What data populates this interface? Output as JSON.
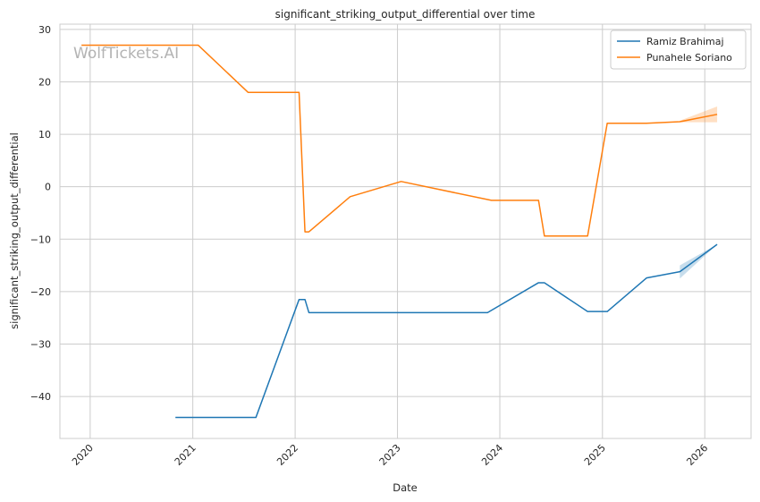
{
  "chart_data": {
    "type": "line",
    "title": "significant_striking_output_differential over time",
    "xlabel": "Date",
    "ylabel": "significant_striking_output_differential",
    "watermark": "WolfTickets.AI",
    "x_ticks": [
      "2020",
      "2021",
      "2022",
      "2023",
      "2024",
      "2025",
      "2026"
    ],
    "y_ticks": [
      "−40",
      "−30",
      "−20",
      "−10",
      "0",
      "10",
      "20",
      "30"
    ],
    "xlim": [
      "2019-09-15",
      "2026-06-15"
    ],
    "ylim": [
      -48,
      31
    ],
    "grid": true,
    "legend_position": "top-right",
    "colors": {
      "Ramiz Brahimaj": "#1f77b4",
      "Punahele Soriano": "#ff7f0e"
    },
    "series": [
      {
        "name": "Ramiz Brahimaj",
        "color": "#1f77b4",
        "points": [
          {
            "x": "2020-10-31",
            "y": -44
          },
          {
            "x": "2021-08-14",
            "y": -44
          },
          {
            "x": "2022-01-15",
            "y": -21.5
          },
          {
            "x": "2022-02-05",
            "y": -21.5
          },
          {
            "x": "2022-02-19",
            "y": -24
          },
          {
            "x": "2023-11-18",
            "y": -24
          },
          {
            "x": "2024-05-18",
            "y": -18.3
          },
          {
            "x": "2024-06-08",
            "y": -18.3
          },
          {
            "x": "2024-11-09",
            "y": -23.8
          },
          {
            "x": "2025-01-18",
            "y": -23.8
          },
          {
            "x": "2025-06-07",
            "y": -17.4
          },
          {
            "x": "2025-10-04",
            "y": -16.2
          },
          {
            "x": "2026-02-14",
            "y": -11
          }
        ],
        "band": {
          "from": "2025-10-04",
          "to": "2026-02-14",
          "lower": [
            -17.5,
            -11
          ],
          "upper": [
            -15,
            -11
          ]
        }
      },
      {
        "name": "Punahele Soriano",
        "color": "#ff7f0e",
        "points": [
          {
            "x": "2019-12-01",
            "y": 27
          },
          {
            "x": "2021-01-20",
            "y": 27
          },
          {
            "x": "2021-07-17",
            "y": 18
          },
          {
            "x": "2022-01-15",
            "y": 18
          },
          {
            "x": "2022-02-05",
            "y": -8.6
          },
          {
            "x": "2022-02-19",
            "y": -8.6
          },
          {
            "x": "2022-07-16",
            "y": -1.9
          },
          {
            "x": "2023-01-14",
            "y": 1
          },
          {
            "x": "2023-12-02",
            "y": -2.6
          },
          {
            "x": "2024-05-18",
            "y": -2.6
          },
          {
            "x": "2024-06-08",
            "y": -9.4
          },
          {
            "x": "2024-11-09",
            "y": -9.4
          },
          {
            "x": "2025-01-18",
            "y": 12.1
          },
          {
            "x": "2025-06-07",
            "y": 12.1
          },
          {
            "x": "2025-10-04",
            "y": 12.4
          },
          {
            "x": "2026-02-14",
            "y": 13.8
          }
        ],
        "band": {
          "from": "2025-10-04",
          "to": "2026-02-14",
          "lower": [
            12.3,
            12.3
          ],
          "upper": [
            12.6,
            15.3
          ]
        }
      }
    ]
  }
}
